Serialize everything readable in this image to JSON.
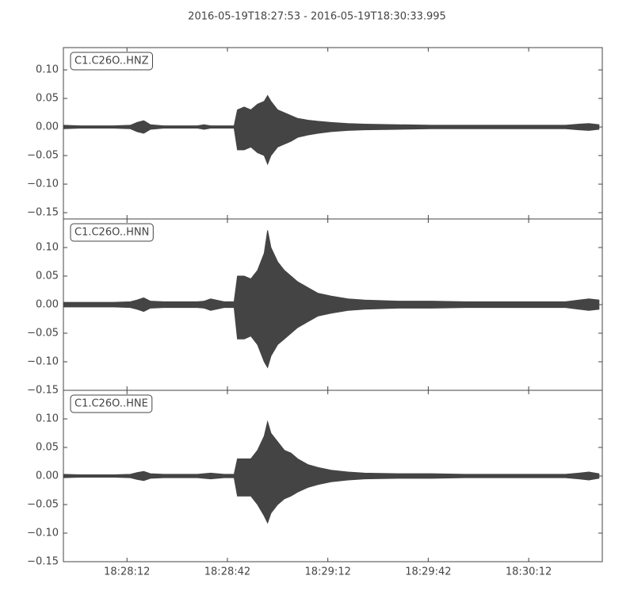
{
  "chart_data": {
    "type": "area",
    "title": "2016-05-19T18:27:53  -  2016-05-19T18:30:33.995",
    "color": "#444444",
    "xlim": [
      0,
      160.995
    ],
    "xticks": [
      {
        "value": 19,
        "label": "18:28:12"
      },
      {
        "value": 49,
        "label": "18:28:42"
      },
      {
        "value": 79,
        "label": "18:29:12"
      },
      {
        "value": 109,
        "label": "18:29:42"
      },
      {
        "value": 139,
        "label": "18:30:12"
      }
    ],
    "x": [
      0,
      5,
      10,
      15,
      20,
      22,
      24,
      26,
      30,
      35,
      40,
      42,
      44,
      48,
      51,
      52,
      54,
      56,
      58,
      60,
      61,
      62,
      64,
      66,
      68,
      70,
      73,
      76,
      80,
      85,
      90,
      100,
      110,
      120,
      130,
      140,
      150,
      154,
      157,
      160
    ],
    "panels": [
      {
        "label": "C1.C26O..HNZ",
        "ylim": [
          -0.161,
          0.139
        ],
        "yticks": [
          {
            "value": -0.15,
            "label": "−0.15"
          },
          {
            "value": -0.1,
            "label": "−0.10"
          },
          {
            "value": -0.05,
            "label": "−0.05"
          },
          {
            "value": 0,
            "label": "0.00"
          },
          {
            "value": 0.05,
            "label": "0.05"
          },
          {
            "value": 0.1,
            "label": "0.10"
          }
        ],
        "upper": [
          0.003,
          0.002,
          0.002,
          0.002,
          0.003,
          0.008,
          0.011,
          0.004,
          0.002,
          0.002,
          0.002,
          0.004,
          0.002,
          0.002,
          0.002,
          0.03,
          0.035,
          0.03,
          0.04,
          0.045,
          0.055,
          0.045,
          0.03,
          0.025,
          0.02,
          0.015,
          0.012,
          0.01,
          0.008,
          0.006,
          0.005,
          0.004,
          0.003,
          0.003,
          0.003,
          0.003,
          0.003,
          0.005,
          0.006,
          0.004
        ],
        "lower": [
          -0.003,
          -0.002,
          -0.002,
          -0.002,
          -0.003,
          -0.008,
          -0.011,
          -0.004,
          -0.002,
          -0.002,
          -0.002,
          -0.004,
          -0.002,
          -0.002,
          -0.002,
          -0.04,
          -0.04,
          -0.035,
          -0.045,
          -0.05,
          -0.065,
          -0.05,
          -0.035,
          -0.03,
          -0.025,
          -0.018,
          -0.014,
          -0.011,
          -0.008,
          -0.006,
          -0.005,
          -0.004,
          -0.003,
          -0.003,
          -0.003,
          -0.003,
          -0.003,
          -0.005,
          -0.006,
          -0.004
        ]
      },
      {
        "label": "C1.C26O..HNN",
        "ylim": [
          -0.15,
          0.15
        ],
        "yticks": [
          {
            "value": -0.15,
            "label": "−0.15"
          },
          {
            "value": -0.1,
            "label": "−0.10"
          },
          {
            "value": -0.05,
            "label": "−0.05"
          },
          {
            "value": 0,
            "label": "0.00"
          },
          {
            "value": 0.05,
            "label": "0.05"
          },
          {
            "value": 0.1,
            "label": "0.10"
          }
        ],
        "upper": [
          0.004,
          0.004,
          0.004,
          0.004,
          0.005,
          0.008,
          0.012,
          0.006,
          0.005,
          0.005,
          0.005,
          0.006,
          0.01,
          0.005,
          0.005,
          0.05,
          0.05,
          0.045,
          0.06,
          0.09,
          0.13,
          0.1,
          0.075,
          0.06,
          0.05,
          0.04,
          0.03,
          0.02,
          0.015,
          0.01,
          0.008,
          0.006,
          0.006,
          0.005,
          0.005,
          0.005,
          0.005,
          0.008,
          0.01,
          0.008
        ],
        "lower": [
          -0.004,
          -0.004,
          -0.004,
          -0.004,
          -0.005,
          -0.008,
          -0.012,
          -0.006,
          -0.005,
          -0.005,
          -0.005,
          -0.006,
          -0.01,
          -0.005,
          -0.005,
          -0.06,
          -0.06,
          -0.055,
          -0.07,
          -0.1,
          -0.11,
          -0.09,
          -0.07,
          -0.06,
          -0.05,
          -0.04,
          -0.03,
          -0.02,
          -0.015,
          -0.01,
          -0.008,
          -0.006,
          -0.006,
          -0.005,
          -0.005,
          -0.005,
          -0.005,
          -0.008,
          -0.01,
          -0.008
        ]
      },
      {
        "label": "C1.C26O..HNE",
        "ylim": [
          -0.15,
          0.15
        ],
        "yticks": [
          {
            "value": -0.15,
            "label": "−0.15"
          },
          {
            "value": -0.1,
            "label": "−0.10"
          },
          {
            "value": -0.05,
            "label": "−0.05"
          },
          {
            "value": 0,
            "label": "0.00"
          },
          {
            "value": 0.05,
            "label": "0.05"
          },
          {
            "value": 0.1,
            "label": "0.10"
          }
        ],
        "upper": [
          0.003,
          0.002,
          0.002,
          0.002,
          0.003,
          0.006,
          0.008,
          0.004,
          0.003,
          0.003,
          0.003,
          0.004,
          0.005,
          0.003,
          0.003,
          0.03,
          0.03,
          0.03,
          0.045,
          0.07,
          0.095,
          0.075,
          0.06,
          0.045,
          0.04,
          0.03,
          0.02,
          0.015,
          0.01,
          0.007,
          0.005,
          0.004,
          0.004,
          0.003,
          0.003,
          0.003,
          0.003,
          0.005,
          0.007,
          0.004
        ],
        "lower": [
          -0.003,
          -0.002,
          -0.002,
          -0.002,
          -0.003,
          -0.006,
          -0.008,
          -0.004,
          -0.003,
          -0.003,
          -0.003,
          -0.004,
          -0.005,
          -0.003,
          -0.003,
          -0.035,
          -0.035,
          -0.035,
          -0.05,
          -0.07,
          -0.082,
          -0.065,
          -0.05,
          -0.04,
          -0.035,
          -0.028,
          -0.02,
          -0.015,
          -0.01,
          -0.007,
          -0.005,
          -0.004,
          -0.004,
          -0.003,
          -0.003,
          -0.003,
          -0.003,
          -0.005,
          -0.007,
          -0.004
        ]
      }
    ]
  }
}
